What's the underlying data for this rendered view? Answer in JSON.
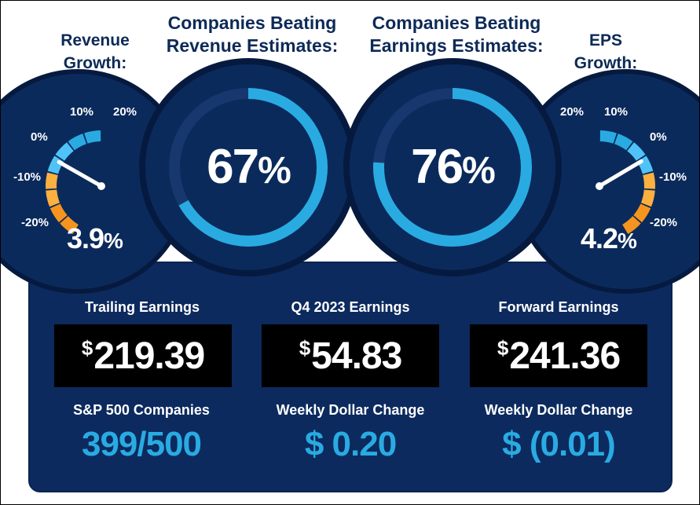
{
  "headings": {
    "revenue_growth": "Revenue\nGrowth:",
    "companies_beating_revenue": "Companies Beating\nRevenue Estimates:",
    "companies_beating_earnings": "Companies Beating\nEarnings Estimates:",
    "eps_growth": "EPS\nGrowth:"
  },
  "revenue_gauge": {
    "value": "3.9",
    "unit": "%",
    "ticks": [
      "-20%",
      "-10%",
      "0%",
      "10%",
      "20%"
    ],
    "needle_value": 3.9
  },
  "eps_gauge": {
    "value": "4.2",
    "unit": "%",
    "ticks": [
      "20%",
      "10%",
      "0%",
      "-10%",
      "-20%"
    ],
    "needle_value": 4.2
  },
  "revenue_ring": {
    "value": "67",
    "unit": "%",
    "fraction": 0.67
  },
  "earnings_ring": {
    "value": "76",
    "unit": "%",
    "fraction": 0.76
  },
  "columns": [
    {
      "label": "Trailing Earnings",
      "amount": "219.39",
      "currency": "$",
      "sub_label": "S&P 500 Companies",
      "sub_value": "399/500"
    },
    {
      "label": "Q4 2023 Earnings",
      "amount": "54.83",
      "currency": "$",
      "sub_label": "Weekly Dollar Change",
      "sub_value": "$ 0.20"
    },
    {
      "label": "Forward Earnings",
      "amount": "241.36",
      "currency": "$",
      "sub_label": "Weekly Dollar Change",
      "sub_value": "$ (0.01)"
    }
  ],
  "colors": {
    "navy_dark": "#061a3f",
    "navy": "#0b2a5c",
    "panel": "#0c2a5e",
    "accent_blue": "#29abe2",
    "ring_track": "#17386e",
    "heading": "#0d2a57",
    "gauge_orange": "#f7941d",
    "gauge_orange_light": "#fbb040",
    "gauge_blue_light": "#4fc3f7"
  }
}
